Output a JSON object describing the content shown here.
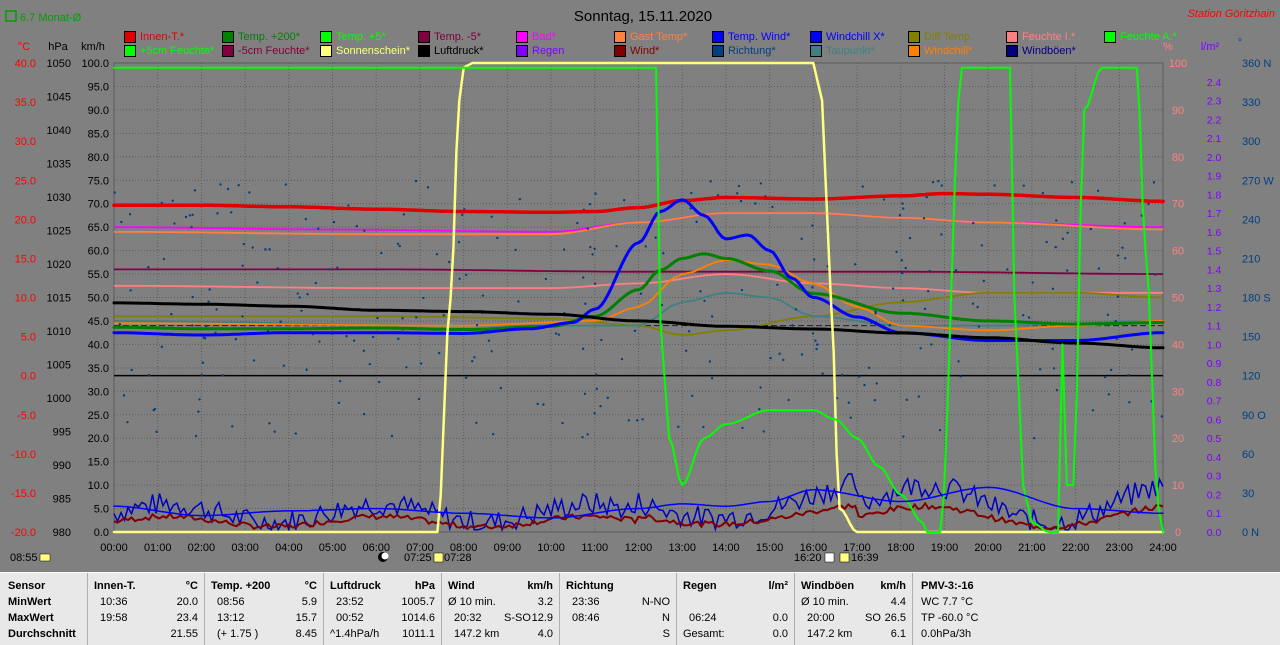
{
  "header": {
    "title": "Sonntag, 15.11.2020",
    "station": "Station Göritzhain",
    "monthly_avg": "6.7 Monat-Ø"
  },
  "legend": [
    {
      "label": "Innen-T.*",
      "color": "#e00000"
    },
    {
      "label": "Temp. +200*",
      "color": "#008000"
    },
    {
      "label": "Temp. +5*",
      "color": "#00ff00"
    },
    {
      "label": "Temp. -5*",
      "color": "#800040"
    },
    {
      "label": "Bad*",
      "color": "#ff00ff"
    },
    {
      "label": "Gast Temp*",
      "color": "#ff8040"
    },
    {
      "label": "Temp. Wind*",
      "color": "#0000ff"
    },
    {
      "label": "Windchill X*",
      "color": "#0000ff"
    },
    {
      "label": "Diff Temp.",
      "color": "#808000"
    },
    {
      "label": "Feuchte I.*",
      "color": "#ff8080"
    },
    {
      "label": "Feuchte A.*",
      "color": "#00ff00"
    },
    {
      "label": "+5cm Feuchte*",
      "color": "#00ff00"
    },
    {
      "label": "-5cm Feuchte*",
      "color": "#800040"
    },
    {
      "label": "Sonnenschein*",
      "color": "#ffff80"
    },
    {
      "label": "Luftdruck*",
      "color": "#000000"
    },
    {
      "label": "Regen",
      "color": "#8000ff"
    },
    {
      "label": "Wind*",
      "color": "#800000"
    },
    {
      "label": "Richtung*",
      "color": "#004080"
    },
    {
      "label": "Taupunkt*",
      "color": "#408080"
    },
    {
      "label": "Windchill*",
      "color": "#ff8000"
    },
    {
      "label": "Windböen*",
      "color": "#000080"
    }
  ],
  "axes": {
    "temp_unit": "°C",
    "hpa_unit": "hPa",
    "kmh_unit": "km/h",
    "pct_unit": "%",
    "rain_unit": "l/m²",
    "deg_unit": "°",
    "temp_ticks": [
      "40.0",
      "35.0",
      "30.0",
      "25.0",
      "20.0",
      "15.0",
      "10.0",
      "5.0",
      "0.0",
      "-5.0",
      "-10.0",
      "-15.0",
      "-20.0"
    ],
    "hpa_ticks": [
      "1050",
      "1045",
      "1040",
      "1035",
      "1030",
      "1025",
      "1020",
      "1015",
      "1010",
      "1005",
      "1000",
      "995",
      "990",
      "985",
      "980"
    ],
    "kmh_ticks": [
      "100.0",
      "95.0",
      "90.0",
      "85.0",
      "80.0",
      "75.0",
      "70.0",
      "65.0",
      "60.0",
      "55.0",
      "50.0",
      "45.0",
      "40.0",
      "35.0",
      "30.0",
      "25.0",
      "20.0",
      "15.0",
      "10.0",
      "5.0",
      "0.0"
    ],
    "pct_ticks": [
      "100",
      "90",
      "80",
      "70",
      "60",
      "50",
      "40",
      "30",
      "20",
      "10",
      "0"
    ],
    "rain_ticks": [
      "2.4",
      "2.3",
      "2.2",
      "2.1",
      "2.0",
      "1.9",
      "1.8",
      "1.7",
      "1.6",
      "1.5",
      "1.4",
      "1.3",
      "1.2",
      "1.1",
      "1.0",
      "0.9",
      "0.8",
      "0.7",
      "0.6",
      "0.5",
      "0.4",
      "0.3",
      "0.2",
      "0.1",
      "0.0"
    ],
    "dir_ticks": [
      "360 N",
      "330",
      "300",
      "270 W",
      "240",
      "210",
      "180 S",
      "150",
      "120",
      "90 O",
      "60",
      "30",
      "0 N"
    ],
    "x_ticks": [
      "00:00",
      "01:00",
      "02:00",
      "03:00",
      "04:00",
      "05:00",
      "06:00",
      "07:00",
      "08:00",
      "09:00",
      "10:00",
      "11:00",
      "12:00",
      "13:00",
      "14:00",
      "15:00",
      "16:00",
      "17:00",
      "18:00",
      "19:00",
      "20:00",
      "21:00",
      "22:00",
      "23:00",
      "24:00"
    ]
  },
  "markers": {
    "left_time": "08:55",
    "sunrise": "07:25",
    "sunrise_end": "07:28",
    "sunset": "16:20",
    "sunset_end": "16:39"
  },
  "chart_data": {
    "type": "line",
    "title": "Sonntag, 15.11.2020",
    "x_unit": "hour",
    "xlim": [
      0,
      24
    ],
    "series": [
      {
        "name": "Innen-T.*",
        "unit": "°C",
        "x": [
          0,
          2,
          4,
          6,
          8,
          10,
          11,
          12,
          13,
          14,
          16,
          18,
          19,
          20,
          22,
          24
        ],
        "values": [
          21.8,
          21.8,
          21.6,
          21.3,
          21.0,
          20.9,
          21.0,
          21.5,
          22.4,
          22.8,
          22.6,
          23.0,
          23.3,
          23.2,
          22.8,
          22.3
        ]
      },
      {
        "name": "Temp. +200*",
        "unit": "°C",
        "x": [
          0,
          2,
          4,
          6,
          8,
          10,
          11,
          12,
          12.5,
          13,
          13.5,
          14,
          15,
          16,
          18,
          20,
          22,
          24
        ],
        "values": [
          6.2,
          6.0,
          6.0,
          6.1,
          5.9,
          6.3,
          7.6,
          11.0,
          13.5,
          15.0,
          15.6,
          15.0,
          13.4,
          10.5,
          8.0,
          7.0,
          6.6,
          6.8
        ]
      },
      {
        "name": "Temp. Wind*",
        "unit": "°C",
        "x": [
          0,
          2,
          4,
          6,
          8,
          9.5,
          10.5,
          11,
          12,
          12.5,
          13,
          13.5,
          14,
          14.5,
          15,
          15.5,
          16,
          17,
          18,
          20,
          22,
          24
        ],
        "values": [
          5.5,
          5.2,
          5.5,
          5.5,
          5.4,
          6.0,
          6.8,
          8.5,
          17.0,
          21.0,
          22.5,
          20.5,
          17.5,
          18.0,
          16.0,
          12.5,
          10.0,
          7.5,
          5.5,
          4.5,
          4.5,
          5.5
        ]
      },
      {
        "name": "Luftdruck*",
        "unit": "hPa",
        "x": [
          0,
          2,
          4,
          6,
          8,
          10,
          12,
          14,
          16,
          18,
          20,
          22,
          24
        ],
        "values": [
          1014.2,
          1014.0,
          1013.7,
          1013.1,
          1012.9,
          1012.5,
          1011.5,
          1010.7,
          1010.3,
          1009.7,
          1009.0,
          1008.2,
          1007.5
        ]
      },
      {
        "name": "Sonnenschein*",
        "unit": "%",
        "x": [
          0,
          7.4,
          7.7,
          7.9,
          8.0,
          8.2,
          16.0,
          16.2,
          16.4,
          16.6,
          17,
          24
        ],
        "values": [
          0,
          0,
          50,
          92,
          99,
          100,
          100,
          92,
          50,
          5,
          0,
          0
        ]
      },
      {
        "name": "Feuchte A.*",
        "unit": "%",
        "x": [
          0,
          12.4,
          12.5,
          12.7,
          13,
          13.5,
          14,
          15,
          16,
          16.5,
          17,
          17.5,
          18,
          18.5,
          18.6,
          18.9,
          19.4,
          20.5,
          20.6,
          20.8,
          21.0,
          21.4,
          21.6,
          21.7,
          21.8,
          21.95,
          22.2,
          22.6,
          23.0,
          23.4,
          23.6,
          23.9,
          24
        ],
        "values": [
          99,
          99,
          45,
          20,
          10,
          20,
          23,
          26,
          26,
          24,
          20,
          14,
          8,
          2,
          0,
          0,
          99,
          99,
          50,
          10,
          2,
          0,
          0,
          40,
          10,
          10,
          90,
          99,
          99,
          99,
          60,
          5,
          0
        ]
      },
      {
        "name": "Windchill X*",
        "unit": "km/h",
        "x": [
          0,
          2,
          4,
          6,
          8,
          10,
          12,
          13,
          14,
          15,
          16,
          18,
          20,
          22,
          24
        ],
        "values": [
          5.5,
          3.5,
          4.5,
          5.0,
          4.0,
          3.0,
          5.0,
          6.0,
          5.5,
          6.5,
          9.0,
          6.5,
          9.5,
          5.0,
          4.0
        ]
      }
    ]
  },
  "stats": {
    "header": {
      "sensor": "Sensor",
      "min": "MinWert",
      "max": "MaxWert",
      "avg": "Durchschnitt"
    },
    "innen": {
      "title": "Innen-T.",
      "unit": "°C",
      "min_time": "10:36",
      "min_val": "20.0",
      "max_time": "19:58",
      "max_val": "23.4",
      "avg": "21.55"
    },
    "temp200": {
      "title": "Temp. +200",
      "unit": "°C",
      "min_time": "08:56",
      "min_val": "5.9",
      "max_time": "13:12",
      "max_val": "15.7",
      "avg_note": "(+ 1.75 )",
      "avg": "8.45"
    },
    "luftdruck": {
      "title": "Luftdruck",
      "unit": "hPa",
      "min_time": "23:52",
      "min_val": "1005.7",
      "max_time": "00:52",
      "max_val": "1014.6",
      "avg_note": "^1.4hPa/h",
      "avg": "1011.1"
    },
    "wind": {
      "title": "Wind",
      "unit": "km/h",
      "min_label": "Ø 10 min.",
      "min_val": "3.2",
      "max_time": "20:32",
      "max_dir": "S-SO",
      "max_val": "12.9",
      "avg_note": "147.2 km",
      "avg": "4.0"
    },
    "richtung": {
      "title": "Richtung",
      "min_time": "23:36",
      "min_val": "N-NO",
      "max_time": "08:46",
      "max_val": "N",
      "avg": "S"
    },
    "regen": {
      "title": "Regen",
      "unit": "l/m²",
      "min_time": "",
      "min_val": "",
      "max_time": "06:24",
      "max_val": "0.0",
      "avg_note": "Gesamt:",
      "avg": "0.0"
    },
    "windboen": {
      "title": "Windböen",
      "unit": "km/h",
      "min_label": "Ø 10 min.",
      "min_val": "4.4",
      "max_time": "20:00",
      "max_dir": "SO",
      "max_val": "26.5",
      "avg_note": "147.2 km",
      "avg": "6.1"
    },
    "pmv": {
      "title": "PMV-3:-16",
      "line1": "WC 7.7 °C",
      "line2": "TP -60.0 °C",
      "line3": "0.0hPa/3h"
    }
  }
}
